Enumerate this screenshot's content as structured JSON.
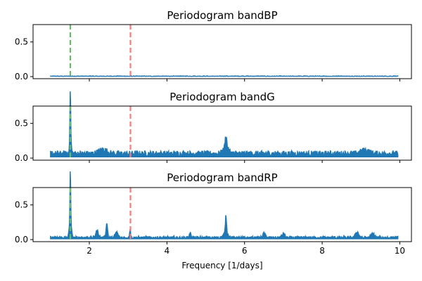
{
  "chart_data": {
    "type": "line",
    "xlabel": "Frequency [1/days]",
    "xlim": [
      0.55,
      10.3
    ],
    "x_ticks": [
      2,
      4,
      6,
      8,
      10
    ],
    "x_tick_labels": [
      "2",
      "4",
      "6",
      "8",
      "10"
    ],
    "color": "#1f77b4",
    "panels": [
      {
        "title": "Periodogram bandBP",
        "ylim": [
          -0.03,
          0.75
        ],
        "y_ticks": [
          0.0,
          0.5
        ],
        "y_tick_labels": [
          "0.0",
          "0.5"
        ],
        "vlines": [
          {
            "x": 1.51,
            "color": "#66bb66"
          },
          {
            "x": 3.06,
            "color": "#f47c7c"
          }
        ],
        "baseline": 0.003,
        "noise": 0.006,
        "peaks": []
      },
      {
        "title": "Periodogram bandG",
        "ylim": [
          -0.03,
          0.75
        ],
        "y_ticks": [
          0.0,
          0.5
        ],
        "y_tick_labels": [
          "0.0",
          "0.5"
        ],
        "vlines": [
          {
            "x": 1.51,
            "color": "#66bb66"
          },
          {
            "x": 3.06,
            "color": "#f47c7c"
          }
        ],
        "baseline": 0.05,
        "noise": 0.08,
        "peaks": [
          {
            "x": 1.51,
            "h": 0.68,
            "w": 0.012
          },
          {
            "x": 1.51,
            "h": 0.28,
            "w": 0.03
          },
          {
            "x": 2.35,
            "h": 0.06,
            "w": 0.15
          },
          {
            "x": 5.52,
            "h": 0.18,
            "w": 0.03
          },
          {
            "x": 5.52,
            "h": 0.08,
            "w": 0.1
          },
          {
            "x": 9.1,
            "h": 0.05,
            "w": 0.15
          }
        ]
      },
      {
        "title": "Periodogram bandRP",
        "ylim": [
          -0.03,
          0.75
        ],
        "y_ticks": [
          0.0,
          0.5
        ],
        "y_tick_labels": [
          "0.0",
          "0.5"
        ],
        "vlines": [
          {
            "x": 1.51,
            "color": "#66bb66"
          },
          {
            "x": 3.06,
            "color": "#f47c7c"
          }
        ],
        "baseline": 0.02,
        "noise": 0.04,
        "peaks": [
          {
            "x": 1.51,
            "h": 0.7,
            "w": 0.012
          },
          {
            "x": 1.51,
            "h": 0.3,
            "w": 0.035
          },
          {
            "x": 2.45,
            "h": 0.2,
            "w": 0.03
          },
          {
            "x": 2.2,
            "h": 0.1,
            "w": 0.05
          },
          {
            "x": 2.7,
            "h": 0.08,
            "w": 0.05
          },
          {
            "x": 3.05,
            "h": 0.12,
            "w": 0.02
          },
          {
            "x": 4.6,
            "h": 0.06,
            "w": 0.04
          },
          {
            "x": 5.52,
            "h": 0.24,
            "w": 0.02
          },
          {
            "x": 5.52,
            "h": 0.08,
            "w": 0.08
          },
          {
            "x": 6.5,
            "h": 0.06,
            "w": 0.05
          },
          {
            "x": 7.0,
            "h": 0.06,
            "w": 0.05
          },
          {
            "x": 8.9,
            "h": 0.08,
            "w": 0.06
          },
          {
            "x": 9.3,
            "h": 0.06,
            "w": 0.06
          }
        ]
      }
    ]
  }
}
